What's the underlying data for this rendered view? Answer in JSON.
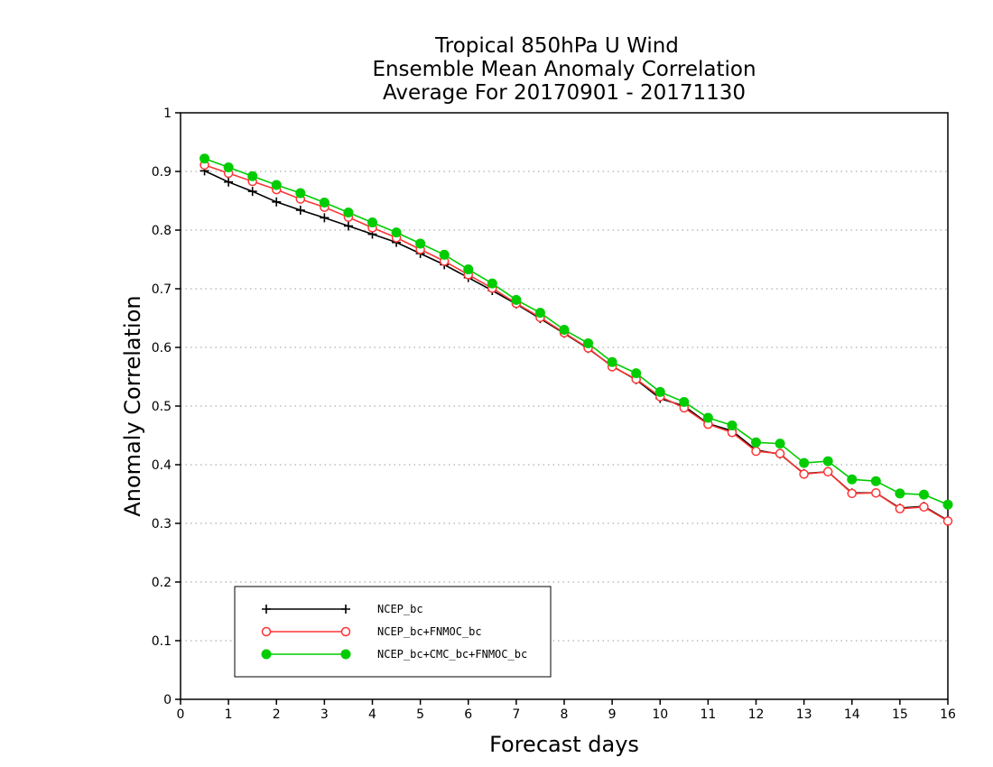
{
  "chart_data": {
    "type": "line",
    "title_lines": [
      "Tropical 850hPa U Wind",
      "Ensemble Mean Anomaly Correlation",
      "Average For 20170901 - 20171130"
    ],
    "xlabel": "Forecast days",
    "ylabel": "Anomaly Correlation",
    "xlim": [
      0,
      16
    ],
    "ylim": [
      0,
      1
    ],
    "x_ticks": [
      "0",
      "1",
      "2",
      "3",
      "4",
      "5",
      "6",
      "7",
      "8",
      "9",
      "10",
      "11",
      "12",
      "13",
      "14",
      "15",
      "16"
    ],
    "y_ticks": [
      "0",
      "0.1",
      "0.2",
      "0.3",
      "0.4",
      "0.5",
      "0.6",
      "0.7",
      "0.8",
      "0.9",
      "1"
    ],
    "grid": "horizontal dotted",
    "legend_position": "bottom-left",
    "x": [
      0.5,
      1,
      1.5,
      2,
      2.5,
      3,
      3.5,
      4,
      4.5,
      5,
      5.5,
      6,
      6.5,
      7,
      7.5,
      8,
      8.5,
      9,
      9.5,
      10,
      10.5,
      11,
      11.5,
      12,
      12.5,
      13,
      13.5,
      14,
      14.5,
      15,
      15.5,
      16
    ],
    "series": [
      {
        "name": "NCEP_bc",
        "color": "#000000",
        "marker": "plus",
        "values": [
          0.901,
          0.882,
          0.866,
          0.848,
          0.834,
          0.821,
          0.807,
          0.793,
          0.779,
          0.76,
          0.741,
          0.719,
          0.697,
          0.674,
          0.649,
          0.624,
          0.598,
          0.568,
          0.545,
          0.513,
          0.5,
          0.47,
          0.458,
          0.425,
          0.418,
          0.385,
          0.388,
          0.352,
          0.352,
          0.326,
          0.329,
          0.305
        ]
      },
      {
        "name": "NCEP_bc+FNMOC_bc",
        "color": "#ff3333",
        "marker": "open-circle",
        "values": [
          0.911,
          0.897,
          0.883,
          0.869,
          0.853,
          0.839,
          0.822,
          0.804,
          0.787,
          0.767,
          0.747,
          0.724,
          0.701,
          0.675,
          0.651,
          0.625,
          0.599,
          0.567,
          0.546,
          0.516,
          0.497,
          0.469,
          0.455,
          0.423,
          0.419,
          0.384,
          0.388,
          0.351,
          0.352,
          0.325,
          0.328,
          0.304
        ]
      },
      {
        "name": "NCEP_bc+CMC_bc+FNMOC_bc",
        "color": "#00cc00",
        "marker": "filled-circle",
        "values": [
          0.922,
          0.907,
          0.892,
          0.877,
          0.863,
          0.847,
          0.83,
          0.813,
          0.796,
          0.777,
          0.758,
          0.733,
          0.709,
          0.681,
          0.659,
          0.63,
          0.607,
          0.575,
          0.556,
          0.524,
          0.507,
          0.48,
          0.467,
          0.438,
          0.436,
          0.403,
          0.406,
          0.375,
          0.372,
          0.351,
          0.349,
          0.332
        ]
      }
    ]
  }
}
